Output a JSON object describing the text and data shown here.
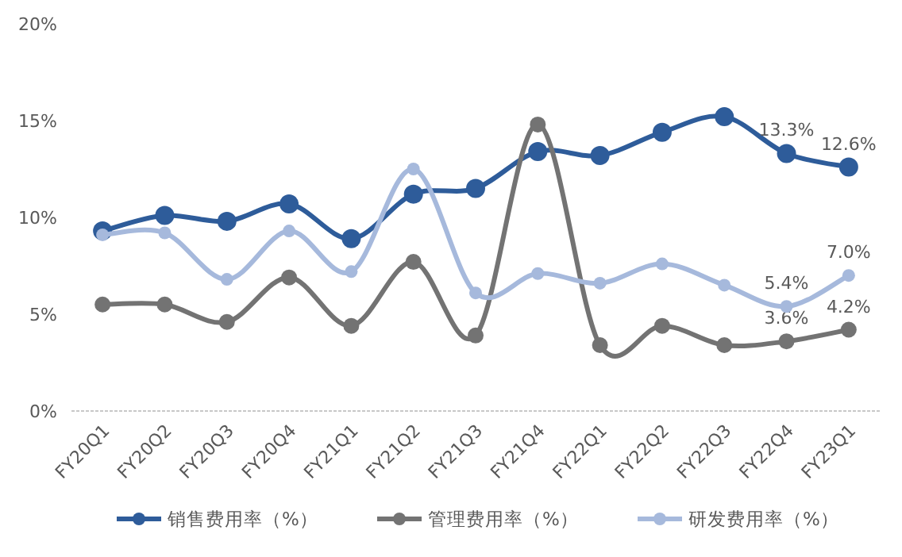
{
  "chart_data": {
    "type": "line",
    "categories": [
      "FY20Q1",
      "FY20Q2",
      "FY20Q3",
      "FY20Q4",
      "FY21Q1",
      "FY21Q2",
      "FY21Q3",
      "FY21Q4",
      "FY22Q1",
      "FY22Q2",
      "FY22Q3",
      "FY22Q4",
      "FY23Q1"
    ],
    "series": [
      {
        "name": "销售费用率（%）",
        "color": "#2e5c9a",
        "values": [
          9.3,
          10.1,
          9.8,
          10.7,
          8.9,
          11.2,
          11.5,
          13.4,
          13.2,
          14.4,
          15.2,
          13.3,
          12.6
        ],
        "value_labels": [
          null,
          null,
          null,
          null,
          null,
          null,
          null,
          null,
          null,
          null,
          null,
          "13.3%",
          "12.6%"
        ]
      },
      {
        "name": "管理费用率（%）",
        "color": "#737373",
        "values": [
          5.5,
          5.5,
          4.6,
          6.9,
          4.4,
          7.7,
          3.9,
          14.8,
          3.4,
          4.4,
          3.4,
          3.6,
          4.2
        ],
        "value_labels": [
          null,
          null,
          null,
          null,
          null,
          null,
          null,
          null,
          null,
          null,
          null,
          "3.6%",
          "4.2%"
        ]
      },
      {
        "name": "研发费用率（%）",
        "color": "#a6b9dc",
        "values": [
          9.1,
          9.2,
          6.8,
          9.3,
          7.2,
          12.5,
          6.1,
          7.1,
          6.6,
          7.6,
          6.5,
          5.4,
          7.0
        ],
        "value_labels": [
          null,
          null,
          null,
          null,
          null,
          null,
          null,
          null,
          null,
          null,
          null,
          "5.4%",
          "7.0%"
        ]
      }
    ],
    "ylim": [
      0,
      20
    ],
    "yticks": [
      {
        "value": 0,
        "label": "0%"
      },
      {
        "value": 5,
        "label": "5%"
      },
      {
        "value": 10,
        "label": "10%"
      },
      {
        "value": 15,
        "label": "15%"
      },
      {
        "value": 20,
        "label": "20%"
      }
    ],
    "grid": false,
    "legend": "bottom",
    "marker": "circle",
    "line_style": "solid"
  }
}
